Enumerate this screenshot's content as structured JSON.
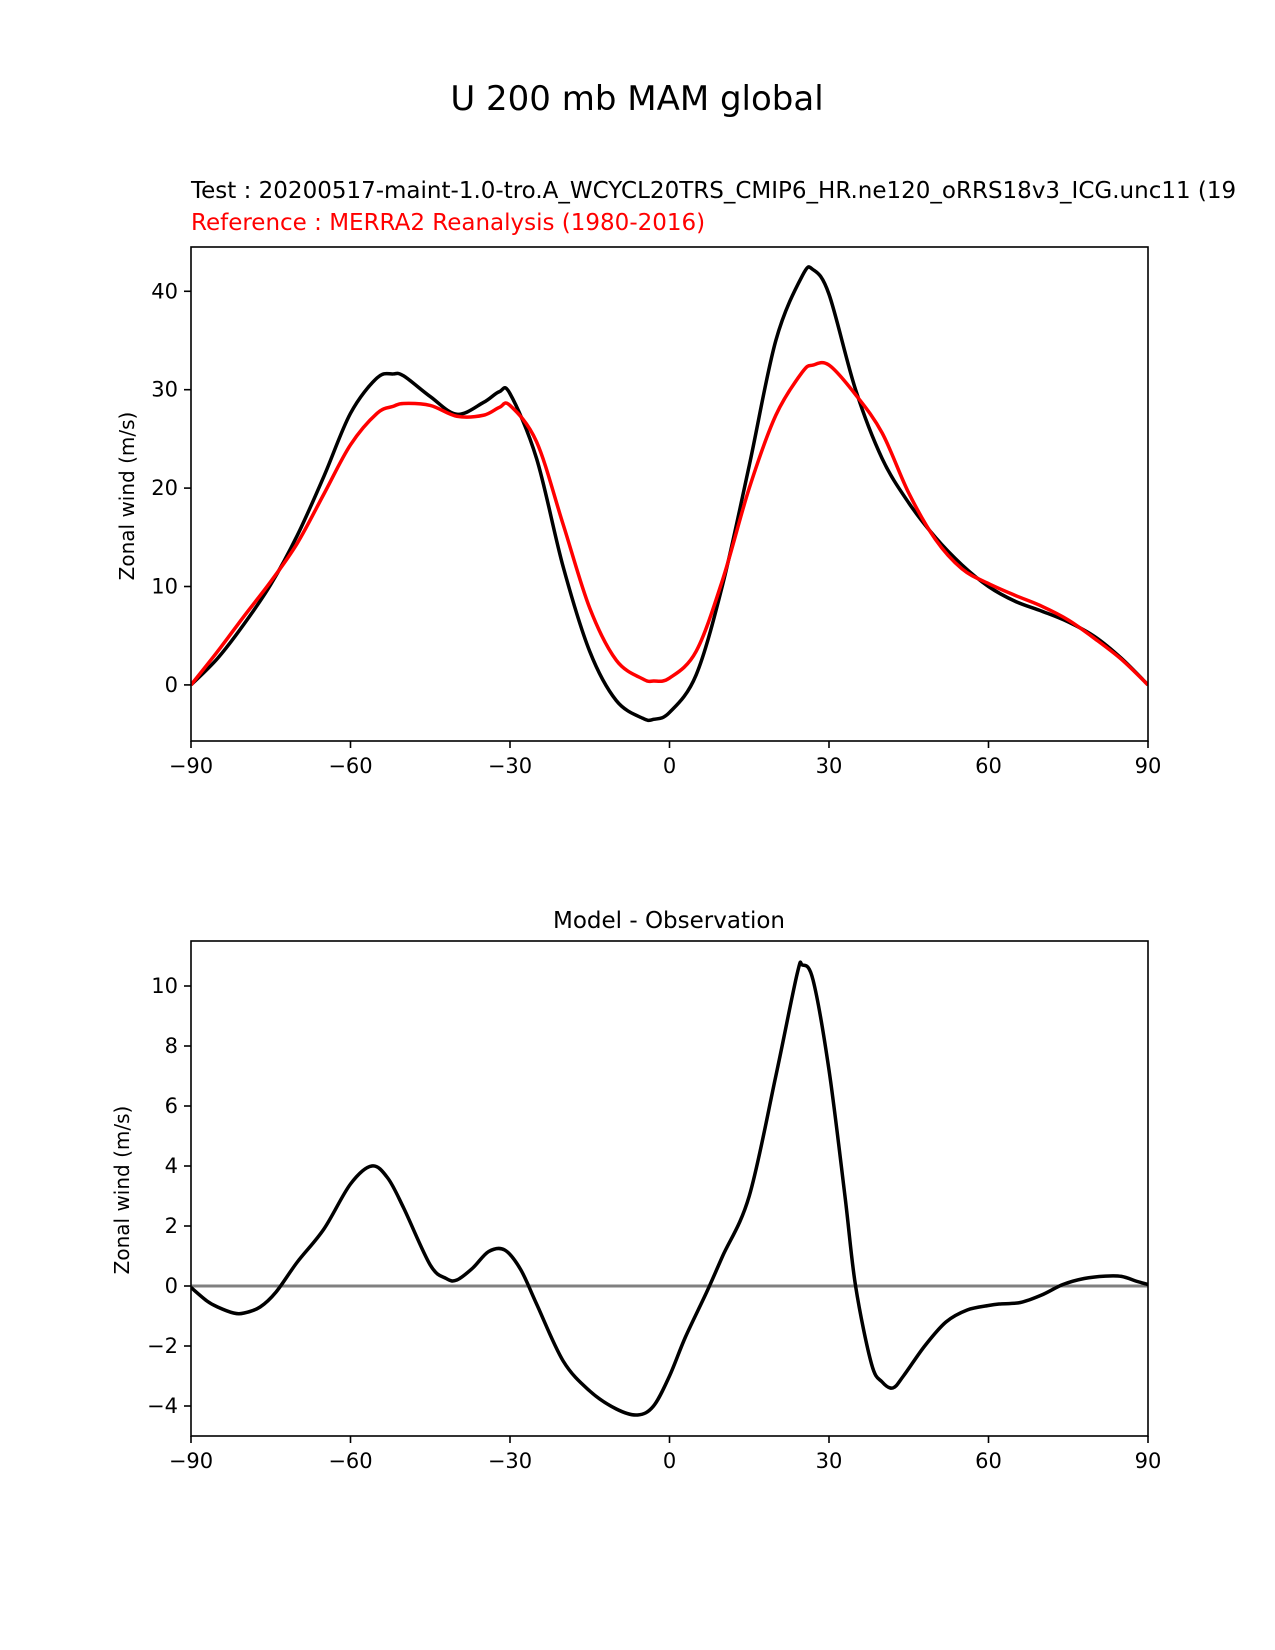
{
  "figure": {
    "suptitle": "U 200 mb MAM global"
  },
  "chart_data": [
    {
      "type": "line",
      "title_test": "Test : 20200517-maint-1.0-tro.A_WCYCL20TRS_CMIP6_HR.ne120_oRRS18v3_ICG.unc11 (19",
      "title_reference": "Reference : MERRA2 Reanalysis (1980-2016)",
      "xlabel": "",
      "ylabel": "Zonal wind (m/s)",
      "xlim": [
        -90,
        90
      ],
      "ylim": [
        -5.7,
        44.5
      ],
      "xticks": [
        -90,
        -60,
        -30,
        0,
        30,
        60,
        90
      ],
      "xtick_labels": [
        "−90",
        "−60",
        "−30",
        "0",
        "30",
        "60",
        "90"
      ],
      "yticks": [
        0,
        10,
        20,
        30,
        40
      ],
      "ytick_labels": [
        "0",
        "10",
        "20",
        "30",
        "40"
      ],
      "grid": false,
      "x": [
        -90,
        -85,
        -80,
        -75,
        -70,
        -65,
        -60,
        -55,
        -52,
        -50,
        -45,
        -40,
        -35,
        -32,
        -30,
        -25,
        -20,
        -15,
        -10,
        -5,
        -3,
        0,
        5,
        10,
        15,
        20,
        25,
        27,
        30,
        35,
        40,
        45,
        50,
        55,
        60,
        65,
        70,
        75,
        80,
        85,
        90
      ],
      "series": [
        {
          "color": "#000000",
          "values": [
            0,
            2.7,
            6.2,
            10.2,
            15.2,
            21.2,
            27.6,
            31.2,
            31.6,
            31.4,
            29.3,
            27.5,
            28.7,
            29.8,
            29.6,
            23.0,
            12.0,
            3.4,
            -1.6,
            -3.4,
            -3.5,
            -2.8,
            1.0,
            10.2,
            22.3,
            35.0,
            41.6,
            42.2,
            39.7,
            30.0,
            23.0,
            18.5,
            15.0,
            12.2,
            10.0,
            8.5,
            7.5,
            6.4,
            4.9,
            2.7,
            0
          ]
        },
        {
          "color": "#ff0000",
          "values": [
            0,
            3.4,
            7.0,
            10.5,
            14.4,
            19.4,
            24.4,
            27.6,
            28.3,
            28.6,
            28.4,
            27.3,
            27.4,
            28.2,
            28.4,
            24.7,
            16.3,
            7.8,
            2.5,
            0.6,
            0.4,
            0.7,
            3.4,
            10.7,
            20.0,
            27.4,
            31.8,
            32.5,
            32.5,
            29.5,
            25.6,
            19.5,
            14.8,
            11.8,
            10.3,
            9.1,
            8.0,
            6.6,
            4.7,
            2.6,
            0
          ]
        }
      ]
    },
    {
      "type": "line",
      "title": "Model - Observation",
      "xlabel": "",
      "ylabel": "Zonal wind (m/s)",
      "xlim": [
        -90,
        90
      ],
      "ylim": [
        -5.0,
        11.5
      ],
      "xticks": [
        -90,
        -60,
        -30,
        0,
        30,
        60,
        90
      ],
      "xtick_labels": [
        "−90",
        "−60",
        "−30",
        "0",
        "30",
        "60",
        "90"
      ],
      "yticks": [
        -4,
        -2,
        0,
        2,
        4,
        6,
        8,
        10
      ],
      "ytick_labels": [
        "−4",
        "−2",
        "0",
        "2",
        "4",
        "6",
        "8",
        "10"
      ],
      "grid": false,
      "zero_line_color": "#808080",
      "x": [
        -90,
        -87,
        -85,
        -82,
        -80,
        -77,
        -74,
        -70,
        -65,
        -60,
        -56,
        -53,
        -50,
        -45,
        -42,
        -40,
        -37,
        -34,
        -31,
        -28,
        -25,
        -20,
        -15,
        -10,
        -6,
        -3,
        0,
        3,
        7,
        10,
        15,
        20,
        24,
        25,
        27,
        30,
        33,
        35,
        38,
        40,
        42,
        44,
        48,
        52,
        56,
        60,
        62,
        66,
        70,
        74,
        78,
        82,
        85,
        88,
        90
      ],
      "series": [
        {
          "color": "#000000",
          "values": [
            -0.05,
            -0.5,
            -0.7,
            -0.9,
            -0.9,
            -0.7,
            -0.2,
            0.8,
            1.9,
            3.4,
            4.0,
            3.6,
            2.6,
            0.7,
            0.25,
            0.2,
            0.6,
            1.15,
            1.2,
            0.55,
            -0.6,
            -2.5,
            -3.5,
            -4.1,
            -4.3,
            -4.0,
            -3.0,
            -1.7,
            -0.2,
            1.0,
            3.0,
            7.0,
            10.4,
            10.7,
            10.2,
            7.2,
            3.0,
            0.0,
            -2.6,
            -3.2,
            -3.4,
            -3.0,
            -2.0,
            -1.2,
            -0.8,
            -0.65,
            -0.6,
            -0.55,
            -0.3,
            0.05,
            0.25,
            0.33,
            0.32,
            0.15,
            0.05
          ]
        }
      ]
    }
  ]
}
